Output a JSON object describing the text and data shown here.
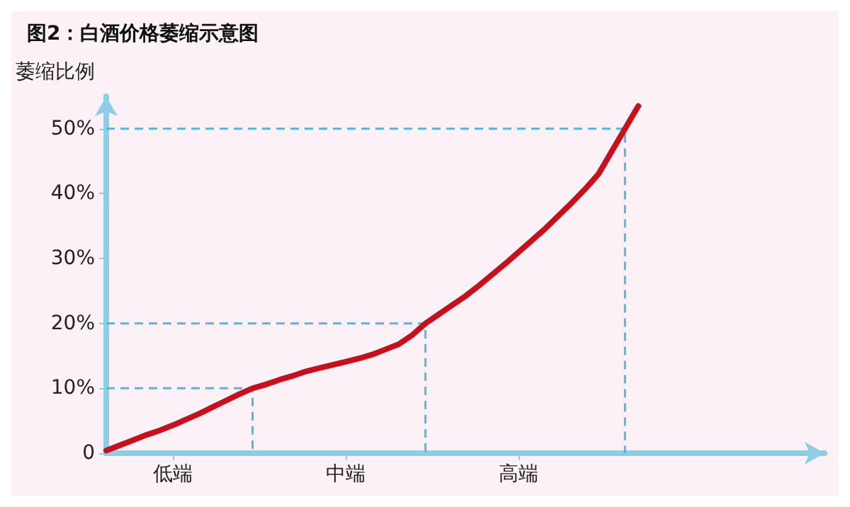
{
  "chart_data": {
    "type": "line",
    "title": "图2：白酒价格萎缩示意图",
    "ylabel": "萎缩比例",
    "categories": [
      null,
      null,
      null,
      null,
      null,
      "低端",
      null,
      null,
      null,
      null,
      null,
      null,
      null,
      null,
      null,
      null,
      null,
      null,
      "中端",
      null,
      null,
      null,
      null,
      null,
      null,
      null,
      null,
      null,
      null,
      null,
      null,
      "高端",
      null,
      null,
      null,
      null,
      null,
      null,
      null,
      null,
      null,
      null,
      null,
      null,
      null,
      null,
      null,
      null,
      null,
      null,
      null,
      null,
      null,
      null,
      null
    ],
    "ylim": [
      0,
      55
    ],
    "yticks": [
      0,
      {
        "value": 10,
        "label": "10%"
      },
      {
        "value": 20,
        "label": "20%"
      },
      {
        "value": 30,
        "label": "30%"
      },
      {
        "value": 40,
        "label": "40%"
      },
      {
        "value": 50,
        "label": "50%"
      }
    ],
    "series": [
      {
        "color": "#c8101a",
        "values": [
          0.4,
          1.2,
          2,
          2.8,
          3.5,
          4.3,
          5.2,
          6.1,
          7.1,
          8.1,
          9.1,
          10,
          10.6,
          11.3,
          11.9,
          12.6,
          13.1,
          13.6,
          14.1,
          14.6,
          15.2,
          16,
          16.8,
          18.2,
          20,
          21.4,
          22.8,
          24.2,
          25.8,
          27.5,
          29.2,
          31,
          32.8,
          34.6,
          36.6,
          38.6,
          40.7,
          43,
          46.5,
          50,
          53.5,
          null,
          null,
          null,
          null,
          null,
          null,
          null,
          null,
          null,
          null,
          null,
          null,
          null,
          null
        ]
      }
    ],
    "ref_lines": [
      {
        "axis": "y",
        "value": 10,
        "color": "#5ab4e0",
        "line_style": "dashed"
      },
      {
        "axis": "y",
        "value": 20,
        "color": "#5ab4e0",
        "line_style": "dashed"
      },
      {
        "axis": "y",
        "value": 50,
        "color": "#5ab4e0",
        "line_style": "dashed"
      }
    ],
    "grid": false,
    "marker": "none",
    "line_style": "solid"
  }
}
